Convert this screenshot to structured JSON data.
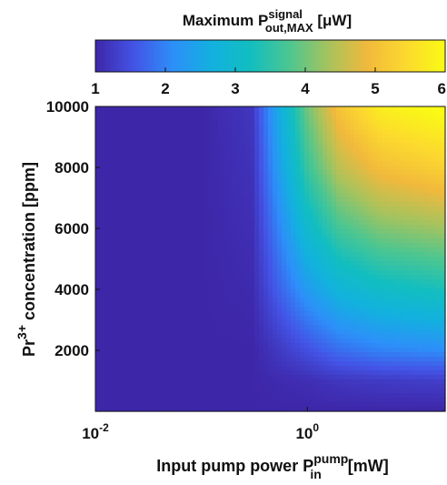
{
  "chart_data": {
    "type": "heatmap",
    "colorbar": {
      "label_main": "Maximum P",
      "label_sup": "signal",
      "label_sub": "out,MAX",
      "label_unit": " [μW]",
      "ticks": [
        1,
        2,
        3,
        4,
        5,
        6
      ],
      "range": [
        1,
        6
      ],
      "placement": "top",
      "colormap": [
        "#3e26a8",
        "#4354e6",
        "#2d8ff9",
        "#12b1df",
        "#12bec0",
        "#4dc690",
        "#a7c35d",
        "#f1b93c",
        "#fcd92e",
        "#f9fb14"
      ]
    },
    "xaxis": {
      "label_main": "Input pump power P",
      "label_sup": "pump",
      "label_sub": "in",
      "label_unit": " [mW]",
      "scale": "log",
      "range": [
        0.01,
        20
      ],
      "ticks": [
        {
          "value": 0.01,
          "base": "10",
          "exp": "-2"
        },
        {
          "value": 1,
          "base": "10",
          "exp": "0"
        }
      ]
    },
    "yaxis": {
      "label_main": "Pr",
      "label_sup": "3+",
      "label_unit": " concentration [ppm]",
      "scale": "linear",
      "range": [
        0,
        10000
      ],
      "ticks": [
        2000,
        4000,
        6000,
        8000,
        10000
      ]
    },
    "grid": false,
    "surface_samples": {
      "x": [
        0.01,
        0.1,
        0.3,
        0.5,
        1,
        2,
        5,
        20
      ],
      "y": [
        0,
        1000,
        2000,
        4000,
        6000,
        8000,
        10000
      ],
      "signal_max_uW": [
        [
          1.0,
          1.0,
          1.0,
          1.0,
          1.0,
          1.0,
          1.0,
          1.0
        ],
        [
          1.0,
          1.0,
          1.0,
          1.05,
          1.1,
          1.2,
          1.25,
          1.3
        ],
        [
          1.0,
          1.0,
          1.0,
          1.2,
          1.5,
          1.8,
          2.0,
          2.1
        ],
        [
          1.0,
          1.0,
          1.05,
          1.6,
          2.3,
          2.8,
          3.1,
          3.3
        ],
        [
          1.0,
          1.0,
          1.1,
          1.9,
          3.0,
          3.7,
          4.1,
          4.3
        ],
        [
          1.0,
          1.0,
          1.15,
          2.2,
          3.6,
          4.5,
          5.0,
          5.3
        ],
        [
          1.0,
          1.0,
          1.2,
          2.4,
          4.0,
          5.1,
          5.8,
          6.1
        ]
      ]
    }
  }
}
